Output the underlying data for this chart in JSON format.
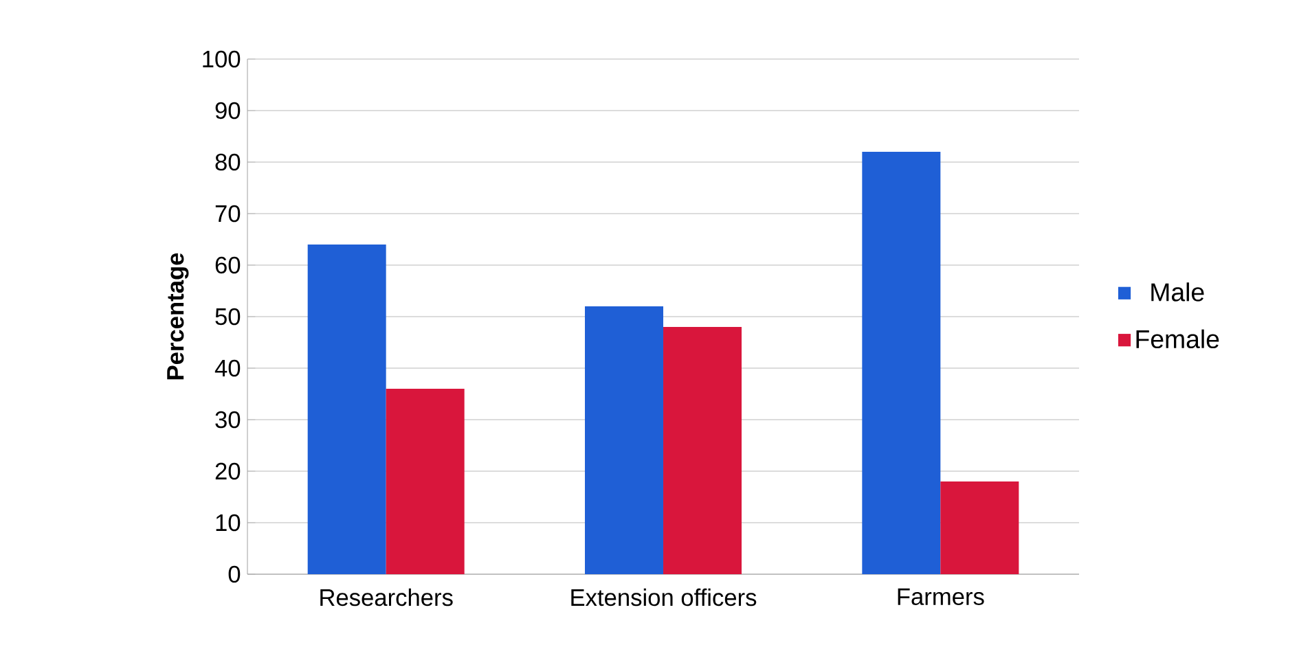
{
  "chart_data": {
    "type": "bar",
    "ylabel": "Percentage",
    "categories": [
      "Researchers",
      "Extension officers",
      "Farmers"
    ],
    "series": [
      {
        "name": "Male",
        "color": "#1f5fd6",
        "values": [
          64,
          52,
          82
        ]
      },
      {
        "name": "Female",
        "color": "#d9163c",
        "values": [
          36,
          48,
          18
        ]
      }
    ],
    "ylim": [
      0,
      100
    ],
    "yticks": [
      0,
      10,
      20,
      30,
      40,
      50,
      60,
      70,
      80,
      90,
      100
    ],
    "grid": "y",
    "legend": "right"
  }
}
